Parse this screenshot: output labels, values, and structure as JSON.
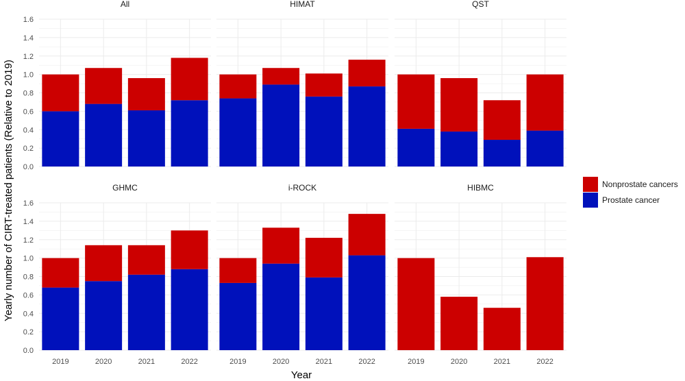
{
  "chart_data": {
    "type": "bar",
    "stacked": true,
    "ylabel": "Yearly number of CIRT-treated patients (Relative to 2019)",
    "xlabel": "Year",
    "categories": [
      "2019",
      "2020",
      "2021",
      "2022"
    ],
    "ylim": [
      0,
      1.6
    ],
    "yticks": [
      "0.0",
      "0.2",
      "0.4",
      "0.6",
      "0.8",
      "1.0",
      "1.2",
      "1.4",
      "1.6"
    ],
    "legend": [
      {
        "name": "Nonprostate cancers",
        "color": "#CC0000"
      },
      {
        "name": "Prostate cancer",
        "color": "#0011BB"
      }
    ],
    "panels": [
      {
        "title": "All",
        "prostate": [
          0.6,
          0.68,
          0.61,
          0.72
        ],
        "nonprostate": [
          0.4,
          0.39,
          0.35,
          0.46
        ]
      },
      {
        "title": "HIMAT",
        "prostate": [
          0.74,
          0.89,
          0.76,
          0.87
        ],
        "nonprostate": [
          0.26,
          0.18,
          0.25,
          0.29
        ]
      },
      {
        "title": "QST",
        "prostate": [
          0.41,
          0.38,
          0.29,
          0.39
        ],
        "nonprostate": [
          0.59,
          0.58,
          0.43,
          0.61
        ]
      },
      {
        "title": "GHMC",
        "prostate": [
          0.68,
          0.75,
          0.82,
          0.88
        ],
        "nonprostate": [
          0.32,
          0.39,
          0.32,
          0.42
        ]
      },
      {
        "title": "i-ROCK",
        "prostate": [
          0.73,
          0.94,
          0.79,
          1.03
        ],
        "nonprostate": [
          0.27,
          0.39,
          0.43,
          0.45
        ]
      },
      {
        "title": "HIBMC",
        "prostate": [
          0.0,
          0.0,
          0.0,
          0.0
        ],
        "nonprostate": [
          1.0,
          0.58,
          0.46,
          1.01
        ]
      }
    ],
    "colors": {
      "prostate": "#0011BB",
      "nonprostate": "#CC0000",
      "grid": "#EBEBEB"
    }
  }
}
